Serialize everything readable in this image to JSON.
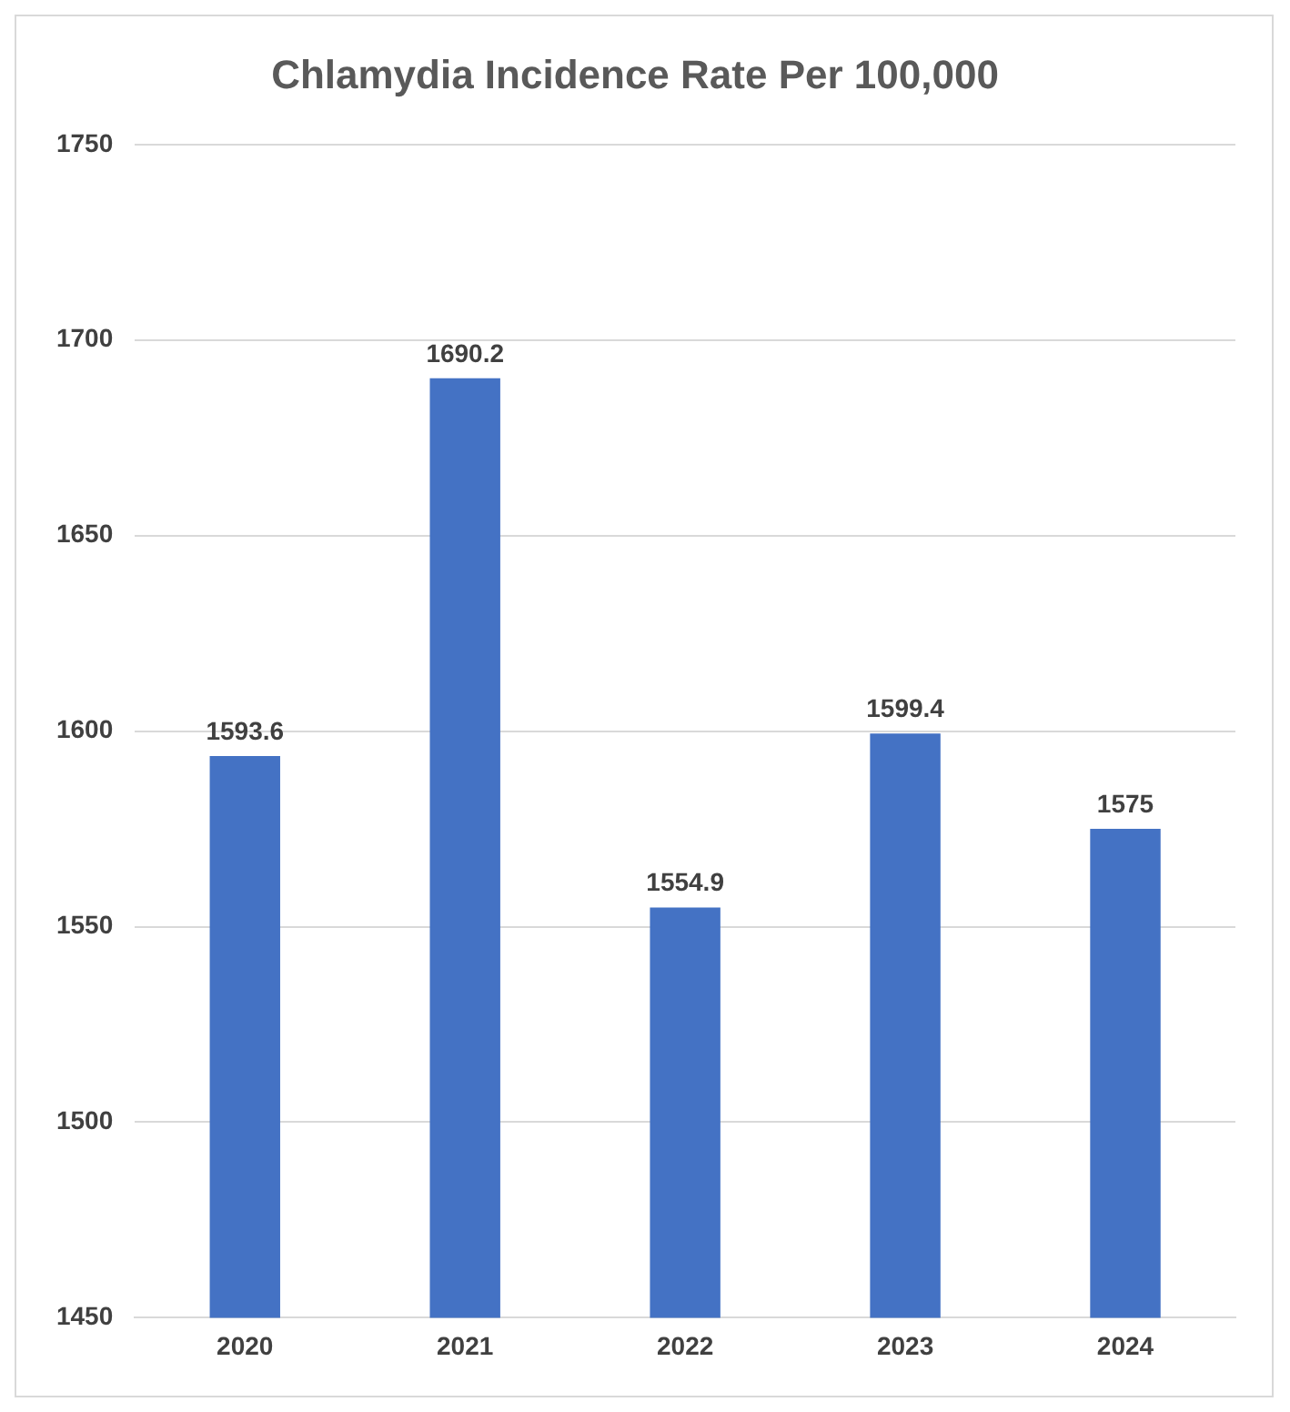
{
  "chart_data": {
    "type": "bar",
    "title": "Chlamydia Incidence Rate Per 100,000",
    "categories": [
      "2020",
      "2021",
      "2022",
      "2023",
      "2024"
    ],
    "values": [
      1593.6,
      1690.2,
      1554.9,
      1599.4,
      1575
    ],
    "color": "#4472c4",
    "ylim": [
      1450,
      1750
    ],
    "yticks": [
      1450,
      1500,
      1550,
      1600,
      1650,
      1700,
      1750
    ],
    "grid": "y",
    "legend": false,
    "data_labels": true
  }
}
